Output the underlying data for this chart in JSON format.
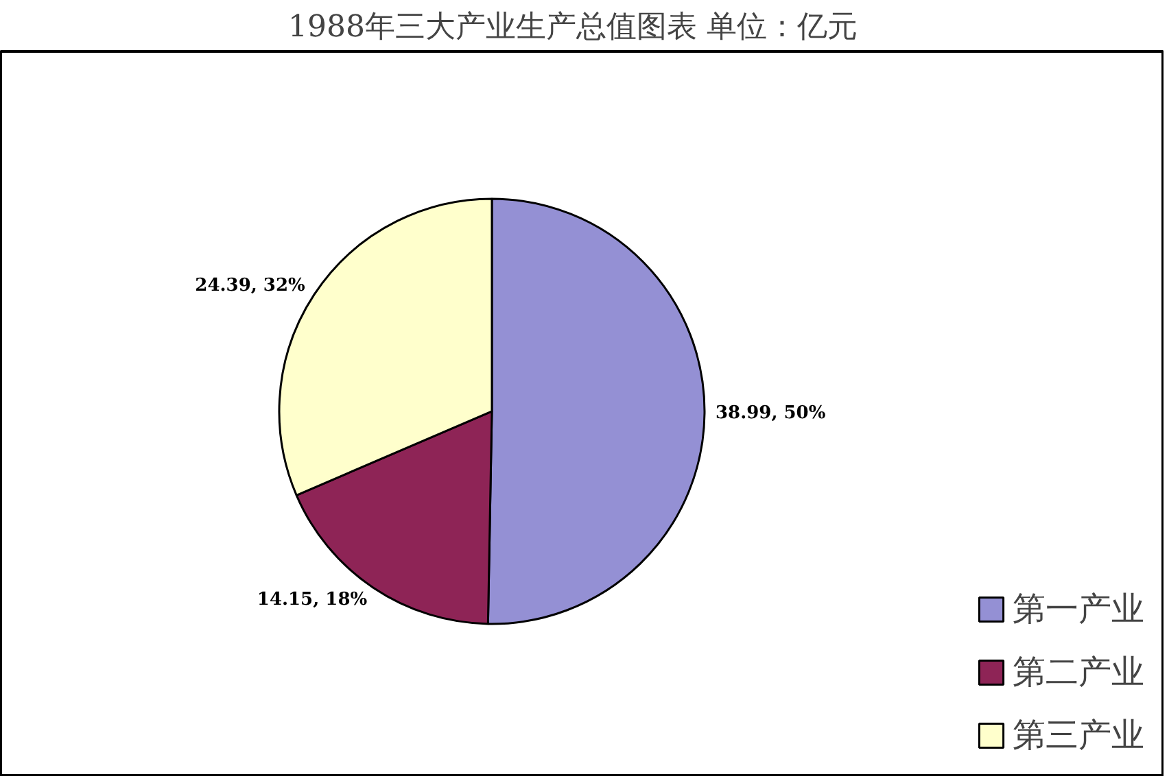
{
  "chart_data": {
    "type": "pie",
    "title": "1988年三大产业生产总值图表   单位：亿元",
    "categories": [
      "第一产业",
      "第二产业",
      "第三产业"
    ],
    "values": [
      38.99,
      14.15,
      24.39
    ],
    "colors": [
      "#9490d4",
      "#8e2456",
      "#ffffcc"
    ],
    "value_labels": [
      "38.99, 50%",
      "14.15, 18%",
      "24.39, 32%"
    ],
    "legend": "bottom right"
  }
}
